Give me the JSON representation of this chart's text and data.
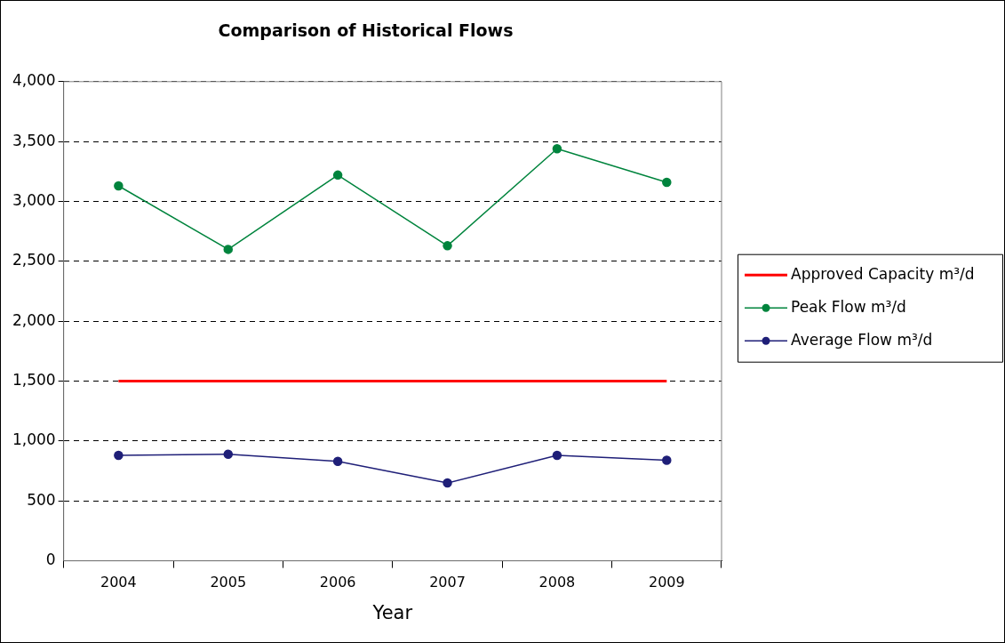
{
  "chart_data": {
    "type": "line",
    "title": "Comparison of Historical Flows",
    "xlabel": "Year",
    "categories": [
      "2004",
      "2005",
      "2006",
      "2007",
      "2008",
      "2009"
    ],
    "series": [
      {
        "name": "Approved Capacity m³/d",
        "color": "#ff0000",
        "marker": "none",
        "values": [
          1500,
          1500,
          1500,
          1500,
          1500,
          1500
        ]
      },
      {
        "name": "Peak Flow m³/d",
        "color": "#00843d",
        "marker": "circle",
        "values": [
          3130,
          2600,
          3220,
          2630,
          3440,
          3160
        ]
      },
      {
        "name": "Average Flow m³/d",
        "color": "#1f1f78",
        "marker": "circle",
        "values": [
          880,
          890,
          830,
          650,
          880,
          840
        ]
      }
    ],
    "ylim": [
      0,
      4000
    ],
    "yticks": [
      0,
      500,
      {
        "value": 1000,
        "label": "1,000"
      },
      {
        "value": 1500,
        "label": "1,500"
      },
      {
        "value": 2000,
        "label": "2,000"
      },
      {
        "value": 2500,
        "label": "2,500"
      },
      {
        "value": 3000,
        "label": "3,000"
      },
      {
        "value": 3500,
        "label": "3,500"
      },
      {
        "value": 4000,
        "label": "4,000"
      }
    ],
    "grid": "y",
    "legend": "right",
    "line_style": "solid"
  }
}
